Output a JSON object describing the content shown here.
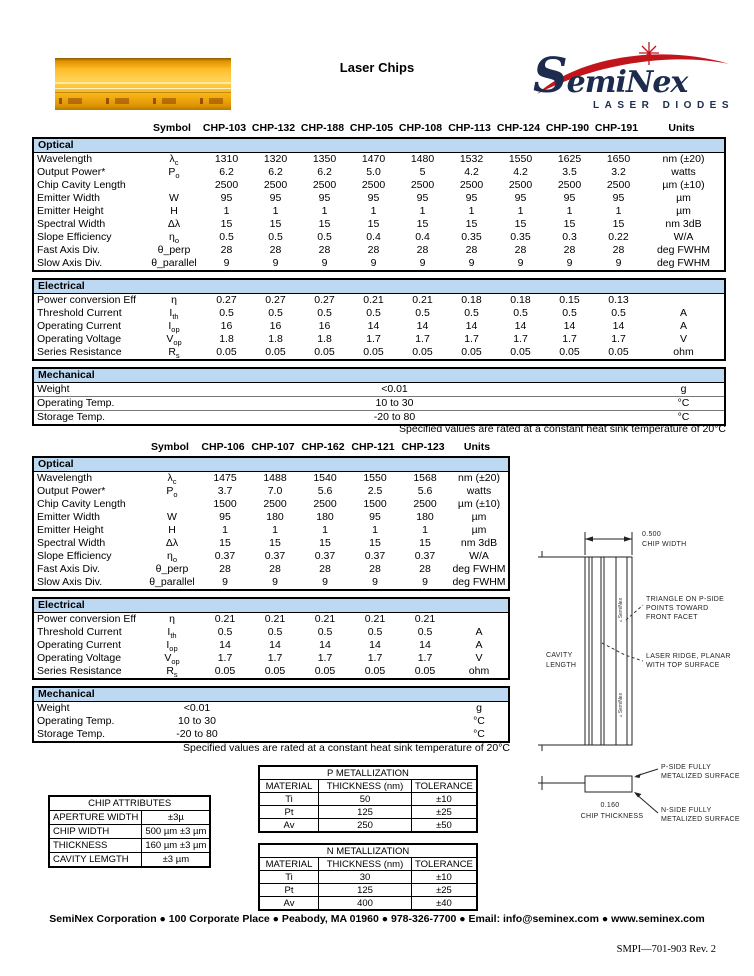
{
  "colors": {
    "section_header_blue": "#BDD9F2",
    "logo_navy": "#1C2B4E",
    "logo_red": "#C2151B",
    "chip_gold": "#FFC63A"
  },
  "header": {
    "title": "Laser Chips",
    "logo_name": "SemiNex",
    "logo_tagline": "LASER DIODES"
  },
  "table1": {
    "columns": [
      "Symbol",
      "CHP-103",
      "CHP-132",
      "CHP-188",
      "CHP-105",
      "CHP-108",
      "CHP-113",
      "CHP-124",
      "CHP-190",
      "CHP-191",
      "Units"
    ],
    "sections": [
      {
        "title": "Optical",
        "kind": "spec",
        "rows": [
          {
            "param": "Wavelength",
            "symbol": "λ",
            "sub": "c",
            "values": [
              "1310",
              "1320",
              "1350",
              "1470",
              "1480",
              "1532",
              "1550",
              "1625",
              "1650"
            ],
            "units": "nm (±20)"
          },
          {
            "param": "Output Power*",
            "symbol": "P",
            "sub": "o",
            "values": [
              "6.2",
              "6.2",
              "6.2",
              "5.0",
              "5",
              "4.2",
              "4.2",
              "3.5",
              "3.2"
            ],
            "units": "watts"
          },
          {
            "param": "Chip Cavity Length",
            "symbol": "",
            "sub": "",
            "values": [
              "2500",
              "2500",
              "2500",
              "2500",
              "2500",
              "2500",
              "2500",
              "2500",
              "2500"
            ],
            "units": "µm (±10)"
          },
          {
            "param": "Emitter Width",
            "symbol": "W",
            "sub": "",
            "values": [
              "95",
              "95",
              "95",
              "95",
              "95",
              "95",
              "95",
              "95",
              "95"
            ],
            "units": "µm"
          },
          {
            "param": "Emitter Height",
            "symbol": "H",
            "sub": "",
            "values": [
              "1",
              "1",
              "1",
              "1",
              "1",
              "1",
              "1",
              "1",
              "1"
            ],
            "units": "µm"
          },
          {
            "param": "Spectral Width",
            "symbol": "Δλ",
            "sub": "",
            "values": [
              "15",
              "15",
              "15",
              "15",
              "15",
              "15",
              "15",
              "15",
              "15"
            ],
            "units": "nm 3dB"
          },
          {
            "param": "Slope Efficiency",
            "symbol": "η",
            "sub": "o",
            "values": [
              "0.5",
              "0.5",
              "0.5",
              "0.4",
              "0.4",
              "0.35",
              "0.35",
              "0.3",
              "0.22"
            ],
            "units": "W/A"
          },
          {
            "param": "Fast Axis Div.",
            "symbol": "θ_perp",
            "sub": "",
            "values": [
              "28",
              "28",
              "28",
              "28",
              "28",
              "28",
              "28",
              "28",
              "28"
            ],
            "units": "deg FWHM"
          },
          {
            "param": "Slow Axis Div.",
            "symbol": "θ_parallel",
            "sub": "",
            "values": [
              "9",
              "9",
              "9",
              "9",
              "9",
              "9",
              "9",
              "9",
              "9"
            ],
            "units": "deg FWHM"
          }
        ]
      },
      {
        "title": "Electrical",
        "kind": "spec",
        "rows": [
          {
            "param": "Power conversion Eff",
            "symbol": "η",
            "sub": "",
            "values": [
              "0.27",
              "0.27",
              "0.27",
              "0.21",
              "0.21",
              "0.18",
              "0.18",
              "0.15",
              "0.13"
            ],
            "units": ""
          },
          {
            "param": "Threshold Current",
            "symbol": "I",
            "sub": "th",
            "values": [
              "0.5",
              "0.5",
              "0.5",
              "0.5",
              "0.5",
              "0.5",
              "0.5",
              "0.5",
              "0.5"
            ],
            "units": "A"
          },
          {
            "param": "Operating Current",
            "symbol": "I",
            "sub": "op",
            "values": [
              "16",
              "16",
              "16",
              "14",
              "14",
              "14",
              "14",
              "14",
              "14"
            ],
            "units": "A"
          },
          {
            "param": "Operating Voltage",
            "symbol": "V",
            "sub": "op",
            "values": [
              "1.8",
              "1.8",
              "1.8",
              "1.7",
              "1.7",
              "1.7",
              "1.7",
              "1.7",
              "1.7"
            ],
            "units": "V"
          },
          {
            "param": "Series Resistance",
            "symbol": "R",
            "sub": "s",
            "values": [
              "0.05",
              "0.05",
              "0.05",
              "0.05",
              "0.05",
              "0.05",
              "0.05",
              "0.05",
              "0.05"
            ],
            "units": "ohm"
          }
        ]
      },
      {
        "title": "Mechanical",
        "kind": "mech",
        "rows": [
          {
            "param": "Weight",
            "value": "<0.01",
            "units": "g"
          },
          {
            "param": "Operating Temp.",
            "value": "10 to 30",
            "units": "°C"
          },
          {
            "param": "Storage Temp.",
            "value": "-20 to 80",
            "units": "°C"
          }
        ]
      }
    ],
    "footnote": "Specified values are rated at a constant heat sink temperature of 20°C"
  },
  "table2": {
    "columns": [
      "Symbol",
      "CHP-106",
      "CHP-107",
      "CHP-162",
      "CHP-121",
      "CHP-123",
      "Units"
    ],
    "sections": [
      {
        "title": "Optical",
        "kind": "spec",
        "rows": [
          {
            "param": "Wavelength",
            "symbol": "λ",
            "sub": "c",
            "values": [
              "1475",
              "1488",
              "1540",
              "1550",
              "1568"
            ],
            "units": "nm (±20)"
          },
          {
            "param": "Output Power*",
            "symbol": "P",
            "sub": "o",
            "values": [
              "3.7",
              "7.0",
              "5.6",
              "2.5",
              "5.6"
            ],
            "units": "watts"
          },
          {
            "param": "Chip Cavity Length",
            "symbol": "",
            "sub": "",
            "values": [
              "1500",
              "2500",
              "2500",
              "1500",
              "2500"
            ],
            "units": "µm (±10)"
          },
          {
            "param": "Emitter Width",
            "symbol": "W",
            "sub": "",
            "values": [
              "95",
              "180",
              "180",
              "95",
              "180"
            ],
            "units": "µm"
          },
          {
            "param": "Emitter Height",
            "symbol": "H",
            "sub": "",
            "values": [
              "1",
              "1",
              "1",
              "1",
              "1"
            ],
            "units": "µm"
          },
          {
            "param": "Spectral Width",
            "symbol": "Δλ",
            "sub": "",
            "values": [
              "15",
              "15",
              "15",
              "15",
              "15"
            ],
            "units": "nm 3dB"
          },
          {
            "param": "Slope Efficiency",
            "symbol": "η",
            "sub": "o",
            "values": [
              "0.37",
              "0.37",
              "0.37",
              "0.37",
              "0.37"
            ],
            "units": "W/A"
          },
          {
            "param": "Fast Axis Div.",
            "symbol": "θ_perp",
            "sub": "",
            "values": [
              "28",
              "28",
              "28",
              "28",
              "28"
            ],
            "units": "deg FWHM"
          },
          {
            "param": "Slow Axis Div.",
            "symbol": "θ_parallel",
            "sub": "",
            "values": [
              "9",
              "9",
              "9",
              "9",
              "9"
            ],
            "units": "deg FWHM"
          }
        ]
      },
      {
        "title": "Electrical",
        "kind": "spec",
        "rows": [
          {
            "param": "Power conversion Eff",
            "symbol": "η",
            "sub": "",
            "values": [
              "0.21",
              "0.21",
              "0.21",
              "0.21",
              "0.21"
            ],
            "units": ""
          },
          {
            "param": "Threshold Current",
            "symbol": "I",
            "sub": "th",
            "values": [
              "0.5",
              "0.5",
              "0.5",
              "0.5",
              "0.5"
            ],
            "units": "A"
          },
          {
            "param": "Operating Current",
            "symbol": "I",
            "sub": "op",
            "values": [
              "14",
              "14",
              "14",
              "14",
              "14"
            ],
            "units": "A"
          },
          {
            "param": "Operating Voltage",
            "symbol": "V",
            "sub": "op",
            "values": [
              "1.7",
              "1.7",
              "1.7",
              "1.7",
              "1.7"
            ],
            "units": "V"
          },
          {
            "param": "Series Resistance",
            "symbol": "R",
            "sub": "s",
            "values": [
              "0.05",
              "0.05",
              "0.05",
              "0.05",
              "0.05"
            ],
            "units": "ohm"
          }
        ]
      },
      {
        "title": "Mechanical",
        "kind": "mech",
        "rows": [
          {
            "param": "Weight",
            "value": "<0.01",
            "units": "g"
          },
          {
            "param": "Operating Temp.",
            "value": "10 to 30",
            "units": "°C"
          },
          {
            "param": "Storage Temp.",
            "value": "-20 to 80",
            "units": "°C"
          }
        ]
      }
    ],
    "footnote": "Specified values are rated at a constant heat sink temperature of 20°C"
  },
  "diagram": {
    "chip_width": [
      "0.500",
      "CHIP WIDTH"
    ],
    "cavity_length": [
      "CAVITY",
      "LENGTH"
    ],
    "triangle_note": [
      "TRIANGLE ON P-SIDE",
      "POINTS TOWARD",
      "FRONT FACET"
    ],
    "ridge_note": [
      "LASER RIDGE, PLANAR",
      "WITH TOP SURFACE"
    ],
    "chip_thickness": [
      "0.160",
      "CHIP THICKNESS"
    ],
    "pside_note": [
      "P-SIDE FULLY",
      "METALIZED SURFACE"
    ],
    "nside_note": [
      "N-SIDE FULLY",
      "METALIZED SURFACE"
    ],
    "chip_marking": "▵ SemiNex"
  },
  "chip_attributes": {
    "title": "CHIP ATTRIBUTES",
    "rows": [
      [
        "APERTURE WIDTH",
        "±3µ"
      ],
      [
        "CHIP WIDTH",
        "500 µm ±3 µm"
      ],
      [
        "THICKNESS",
        "160 µm ±3 µm"
      ],
      [
        "CAVITY LEMGTH",
        "±3 µm"
      ]
    ]
  },
  "p_metallization": {
    "title": "P METALLIZATION",
    "columns": [
      "MATERIAL",
      "THICKNESS (nm)",
      "TOLERANCE"
    ],
    "rows": [
      [
        "Ti",
        "50",
        "±10"
      ],
      [
        "Pt",
        "125",
        "±25"
      ],
      [
        "Av",
        "250",
        "±50"
      ]
    ]
  },
  "n_metallization": {
    "title": "N METALLIZATION",
    "columns": [
      "MATERIAL",
      "THICKNESS (nm)",
      "TOLERANCE"
    ],
    "rows": [
      [
        "Ti",
        "30",
        "±10"
      ],
      [
        "Pt",
        "125",
        "±25"
      ],
      [
        "Av",
        "400",
        "±40"
      ]
    ]
  },
  "footer": {
    "contact": "SemiNex Corporation ● 100 Corporate Place ● Peabody, MA 01960 ● 978-326-7700 ● Email: info@seminex.com ● www.seminex.com",
    "doc_ref": "SMPI—701-903 Rev. 2"
  }
}
